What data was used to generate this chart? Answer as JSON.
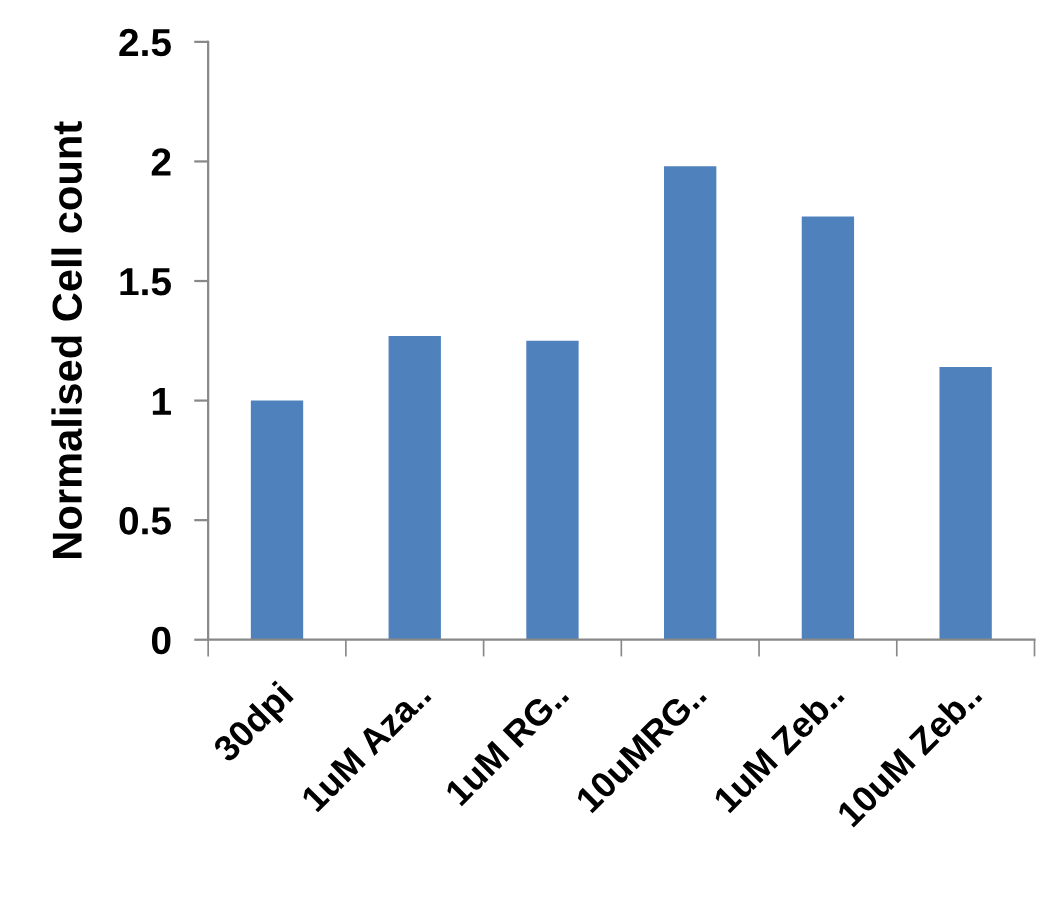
{
  "chart_data": {
    "type": "bar",
    "ylabel": "Normalised Cell count",
    "categories": [
      "30dpi",
      "1uM Aza..",
      "1uM RG..",
      "10uMRG..",
      "1uM Zeb..",
      "10uM Zeb.."
    ],
    "values": [
      1.0,
      1.27,
      1.25,
      1.98,
      1.77,
      1.14
    ],
    "color": "#4f81bd",
    "ylim": [
      0,
      2.5
    ],
    "yticks": [
      0,
      0.5,
      1,
      1.5,
      2,
      2.5
    ],
    "grid": false
  }
}
